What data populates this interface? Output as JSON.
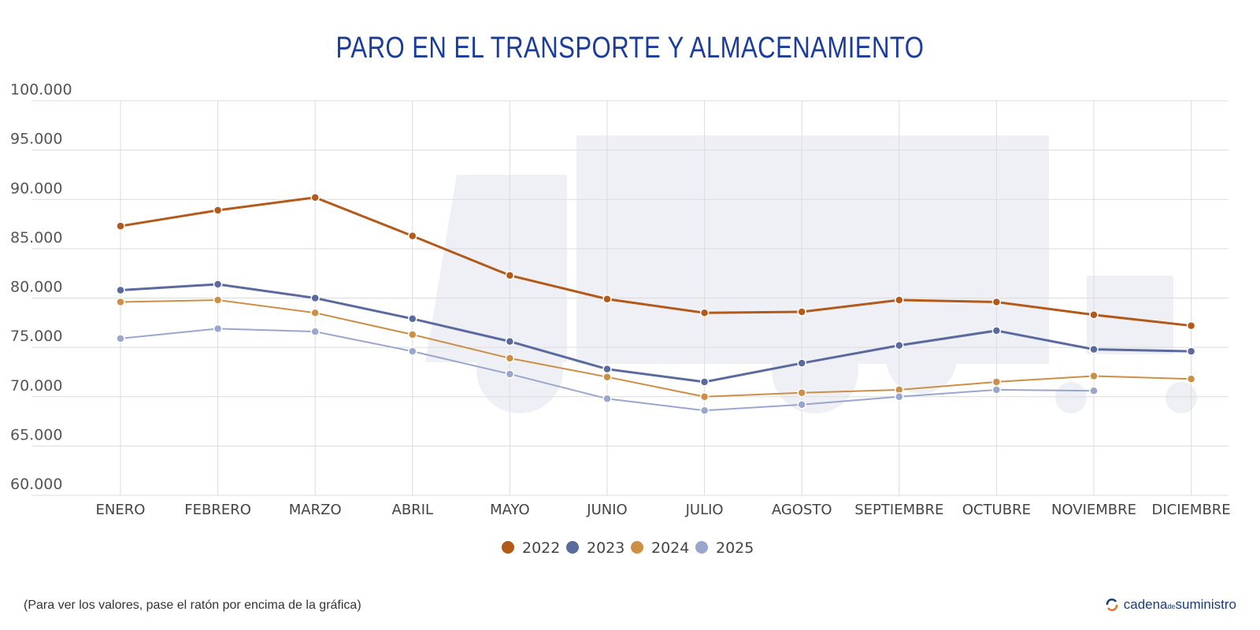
{
  "chart_data": {
    "type": "line",
    "title": "PARO EN EL TRANSPORTE Y ALMACENAMIENTO",
    "categories": [
      "ENERO",
      "FEBRERO",
      "MARZO",
      "ABRIL",
      "MAYO",
      "JUNIO",
      "JULIO",
      "AGOSTO",
      "SEPTIEMBRE",
      "OCTUBRE",
      "NOVIEMBRE",
      "DICIEMBRE"
    ],
    "ylim": [
      60000,
      100000
    ],
    "yticks": [
      60000,
      65000,
      70000,
      75000,
      80000,
      85000,
      90000,
      95000,
      100000
    ],
    "ytick_labels": [
      "60.000",
      "65.000",
      "70.000",
      "75.000",
      "80.000",
      "85.000",
      "90.000",
      "95.000",
      "100.000"
    ],
    "grid": true,
    "legend_position": "bottom",
    "series": [
      {
        "name": "2022",
        "color": "#b35a1a",
        "values": [
          87300,
          88900,
          90200,
          86300,
          82300,
          79900,
          78500,
          78600,
          79800,
          79600,
          78300,
          77200
        ]
      },
      {
        "name": "2023",
        "color": "#5a6a9e",
        "values": [
          80800,
          81400,
          80000,
          77900,
          75600,
          72800,
          71500,
          73400,
          75200,
          76700,
          74800,
          74600
        ]
      },
      {
        "name": "2024",
        "color": "#cc8f45",
        "values": [
          79600,
          79800,
          78500,
          76300,
          73900,
          72000,
          70000,
          70400,
          70700,
          71500,
          72100,
          71800
        ]
      },
      {
        "name": "2025",
        "color": "#9aa6cc",
        "values": [
          75900,
          76900,
          76600,
          74600,
          72300,
          69800,
          68600,
          69200,
          70000,
          70700,
          70600,
          null
        ]
      }
    ]
  },
  "note": "(Para ver los valores, pase el ratón por encima de la gráfica)",
  "logo": {
    "text_main": "cadena",
    "text_small": "de",
    "text_end": "suministro"
  }
}
